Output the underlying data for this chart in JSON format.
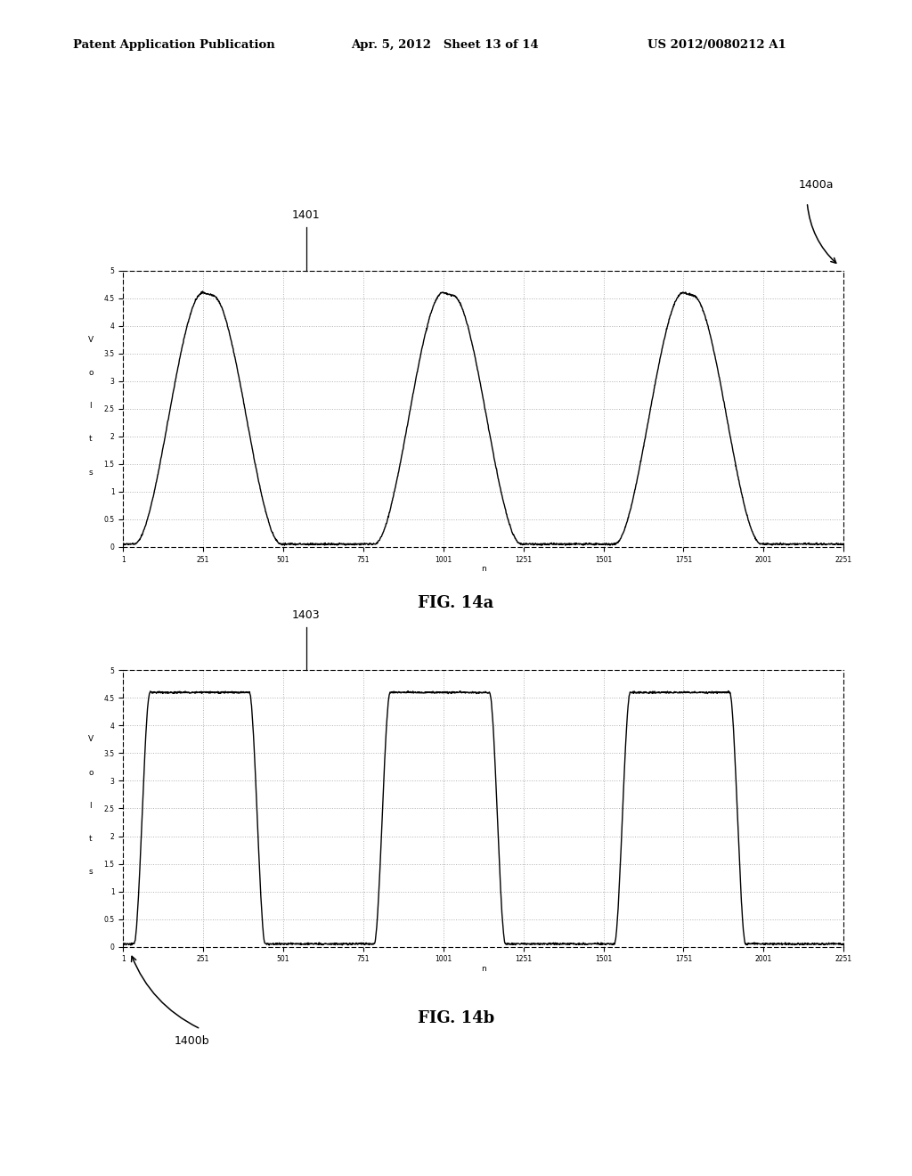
{
  "header_left": "Patent Application Publication",
  "header_center": "Apr. 5, 2012   Sheet 13 of 14",
  "header_right": "US 2012/0080212 A1",
  "fig_a_label": "FIG. 14a",
  "fig_b_label": "FIG. 14b",
  "label_1400a": "1400a",
  "label_1400b": "1400b",
  "label_1401": "1401",
  "label_1403": "1403",
  "ylabel_chars": [
    "V",
    "o",
    "l",
    "t",
    "s"
  ],
  "xlabel": "n",
  "yticks": [
    0,
    0.5,
    1,
    1.5,
    2,
    2.5,
    3,
    3.5,
    4,
    4.5,
    5
  ],
  "xticks": [
    1,
    251,
    501,
    751,
    1001,
    1251,
    1501,
    1751,
    2001,
    2251
  ],
  "ylim": [
    0,
    5
  ],
  "xlim": [
    1,
    2251
  ],
  "background": "#ffffff",
  "plot_bg": "#ffffff",
  "line_color": "#000000",
  "grid_color": "#aaaaaa",
  "high_val": 4.6,
  "low_val": 0.05,
  "period_a": 750,
  "high_dur_a": 250,
  "rise_a": 220,
  "period_b": 750,
  "high_dur_b": 250,
  "rise_b": 50
}
